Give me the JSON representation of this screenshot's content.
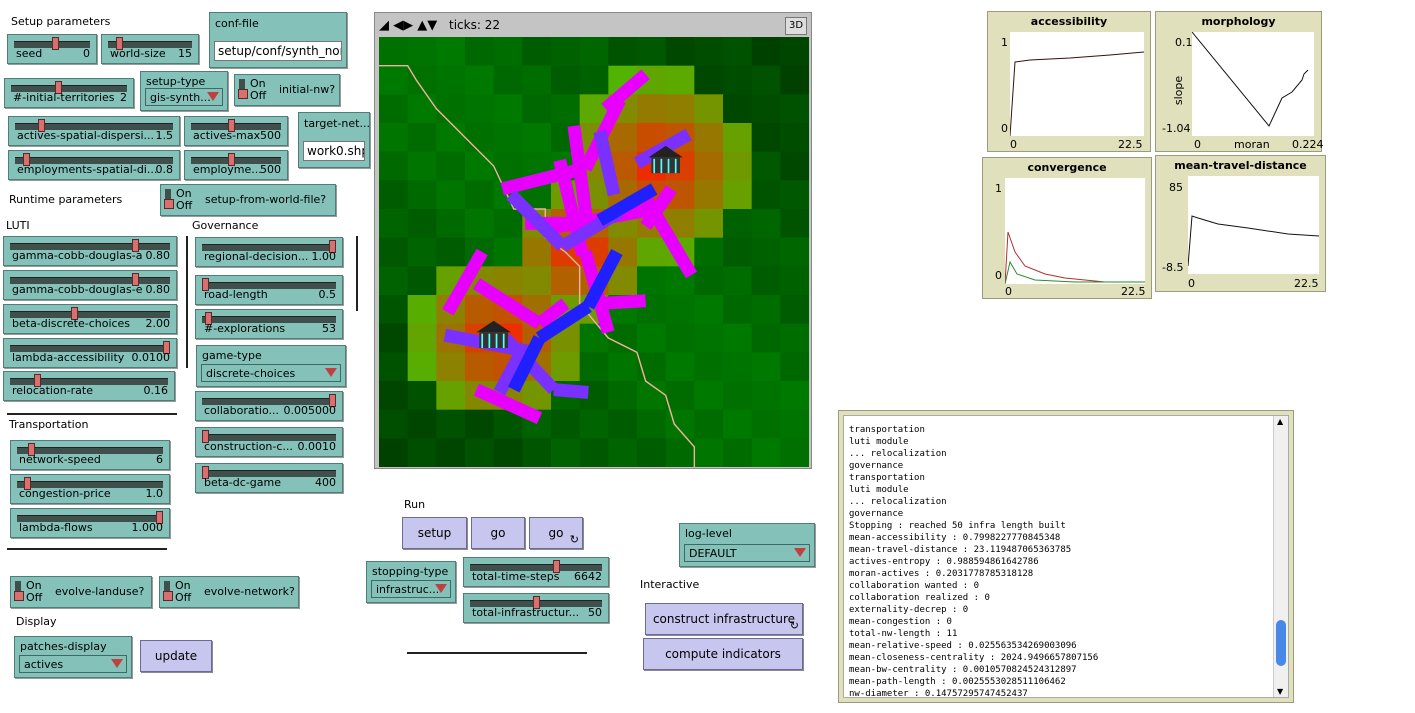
{
  "sections": {
    "setup": "Setup parameters",
    "runtime": "Runtime parameters",
    "luti": "LUTI",
    "governance": "Governance",
    "transportation": "Transportation",
    "display": "Display",
    "run": "Run",
    "interactive": "Interactive"
  },
  "sliders": {
    "seed": {
      "label": "seed",
      "value": "0",
      "pos": 0.55
    },
    "world_size": {
      "label": "world-size",
      "value": "15",
      "pos": 0.1
    },
    "initial_territories": {
      "label": "#-initial-territories",
      "value": "2",
      "pos": 0.4
    },
    "actives_spatial_dispersion": {
      "label": "actives-spatial-dispersi...",
      "value": "1.5",
      "pos": 0.15
    },
    "actives_max": {
      "label": "actives-max",
      "value": "500",
      "pos": 0.45
    },
    "employments_spatial": {
      "label": "employments-spatial-di...",
      "value": "0.8",
      "pos": 0.05
    },
    "employments_max": {
      "label": "employme...",
      "value": "500",
      "pos": 0.45
    },
    "gamma_a": {
      "label": "gamma-cobb-douglas-a",
      "value": "0.80",
      "pos": 0.8
    },
    "gamma_e": {
      "label": "gamma-cobb-douglas-e",
      "value": "0.80",
      "pos": 0.8
    },
    "beta_discrete": {
      "label": "beta-discrete-choices",
      "value": "2.00",
      "pos": 0.4
    },
    "lambda_access": {
      "label": "lambda-accessibility",
      "value": "0.0100",
      "pos": 1.0
    },
    "relocation_rate": {
      "label": "relocation-rate",
      "value": "0.16",
      "pos": 0.16
    },
    "regional_decision": {
      "label": "regional-decision...",
      "value": "1.00",
      "pos": 1.0
    },
    "road_length": {
      "label": "road-length",
      "value": "0.5",
      "pos": 0.0
    },
    "explorations": {
      "label": "#-explorations",
      "value": "53",
      "pos": 0.02
    },
    "collaboration": {
      "label": "collaboratio...",
      "value": "0.005000",
      "pos": 1.0
    },
    "construction_cost": {
      "label": "construction-c...",
      "value": "0.0010",
      "pos": 0.0
    },
    "beta_dc_game": {
      "label": "beta-dc-game",
      "value": "400",
      "pos": 0.0
    },
    "network_speed": {
      "label": "network-speed",
      "value": "6",
      "pos": 0.08
    },
    "congestion_price": {
      "label": "congestion-price",
      "value": "1.0",
      "pos": 0.05
    },
    "lambda_flows": {
      "label": "lambda-flows",
      "value": "1.000",
      "pos": 1.0
    },
    "total_time_steps": {
      "label": "total-time-steps",
      "value": "6642",
      "pos": 0.66
    },
    "total_infrastructure": {
      "label": "total-infrastructur...",
      "value": "50",
      "pos": 0.5
    }
  },
  "choosers": {
    "setup_type": {
      "label": "setup-type",
      "value": "gis-synth..."
    },
    "game_type": {
      "label": "game-type",
      "value": "discrete-choices"
    },
    "patches_display": {
      "label": "patches-display",
      "value": "actives"
    },
    "stopping_type": {
      "label": "stopping-type",
      "value": "infrastruc..."
    },
    "log_level": {
      "label": "log-level",
      "value": "DEFAULT"
    }
  },
  "switches": {
    "initial_nw": {
      "label": "initial-nw?",
      "on": "On",
      "off": "Off"
    },
    "setup_from_world_file": {
      "label": "setup-from-world-file?",
      "on": "On",
      "off": "Off"
    },
    "evolve_landuse": {
      "label": "evolve-landuse?",
      "on": "On",
      "off": "Off"
    },
    "evolve_network": {
      "label": "evolve-network?",
      "on": "On",
      "off": "Off"
    }
  },
  "inputs": {
    "conf_file": {
      "label": "conf-file",
      "value": "setup/conf/synth_non"
    },
    "target_network": {
      "label": "target-net...",
      "value": "work0.shp"
    }
  },
  "buttons": {
    "setup": "setup",
    "go_once": "go",
    "go_forever": "go",
    "update": "update",
    "construct": "construct infrastructure",
    "compute": "compute indicators"
  },
  "view": {
    "ticks": "ticks: 22",
    "three_d": "3D"
  },
  "plots": {
    "accessibility": {
      "title": "accessibility",
      "ymax": "1",
      "ymin": "0",
      "xmin": "0",
      "xmax": "22.5"
    },
    "morphology": {
      "title": "morphology",
      "ymax": "0.1",
      "ymin": "-1.04",
      "xmin": "0",
      "xmax": "0.224",
      "xlabel": "moran",
      "ylabel": "slope"
    },
    "convergence": {
      "title": "convergence",
      "ymax": "1",
      "ymin": "0",
      "xmin": "0",
      "xmax": "22.5"
    },
    "travel": {
      "title": "mean-travel-distance",
      "ymax": "85",
      "ymin": "-8.5",
      "xmin": "0",
      "xmax": "22.5"
    }
  },
  "output_lines": [
    "transportation",
    "luti module",
    "... relocalization",
    "governance",
    "transportation",
    "luti module",
    "... relocalization",
    "governance",
    "Stopping : reached 50 infra length built",
    "mean-accessibility : 0.7998227770845348",
    "mean-travel-distance : 23.119487065363785",
    "actives-entropy : 0.988594861642786",
    "moran-actives : 0.2031778785318128",
    "collaboration wanted : 0",
    "collaboration realized : 0",
    "externality-decrep : 0",
    "mean-congestion : 0",
    "total-nw-length : 11",
    "mean-relative-speed : 0.025563534269003096",
    "mean-closeness-centrality : 2024.9496657807156",
    "mean-bw-centrality : 0.0010570824524312897",
    "mean-path-length : 0.0025553028511106462",
    "nw-diameter : 0.14757295747452437"
  ],
  "colors": {
    "widget": "#83c1b9",
    "button": "#c7c6ef",
    "plot_bg": "#e0e0bd",
    "knob": "#d87070"
  }
}
